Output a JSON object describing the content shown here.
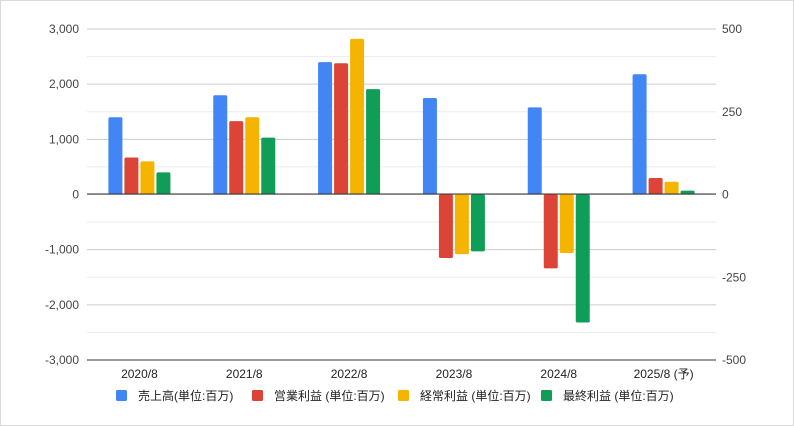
{
  "chart_data": {
    "type": "bar",
    "categories": [
      "2020/8",
      "2021/8",
      "2022/8",
      "2023/8",
      "2024/8",
      "2025/8 (予)"
    ],
    "series": [
      {
        "name": "売上高(単位:百万)",
        "values": [
          1400,
          1800,
          2400,
          1750,
          1580,
          2180
        ],
        "color": "#4285f4"
      },
      {
        "name": "営業利益 (単位:百万)",
        "values": [
          670,
          1330,
          2380,
          -1150,
          -1340,
          300
        ],
        "color": "#db4437"
      },
      {
        "name": "経常利益 (単位:百万)",
        "values": [
          600,
          1400,
          2820,
          -1080,
          -1060,
          230
        ],
        "color": "#f4b400"
      },
      {
        "name": "最終利益 (単位:百万)",
        "values": [
          400,
          1030,
          1910,
          -1030,
          -2320,
          70
        ],
        "color": "#0f9d58"
      }
    ],
    "ylim": [
      -3000,
      3000
    ],
    "y_ticks": [
      "3,000",
      "2,000",
      "1,000",
      "0",
      "-1,000",
      "-2,000",
      "-3,000"
    ],
    "y2lim": [
      -500,
      500
    ],
    "y2_ticks": [
      "500",
      "250",
      "0",
      "-250",
      "-500"
    ],
    "grid": true,
    "legend_position": "bottom"
  }
}
